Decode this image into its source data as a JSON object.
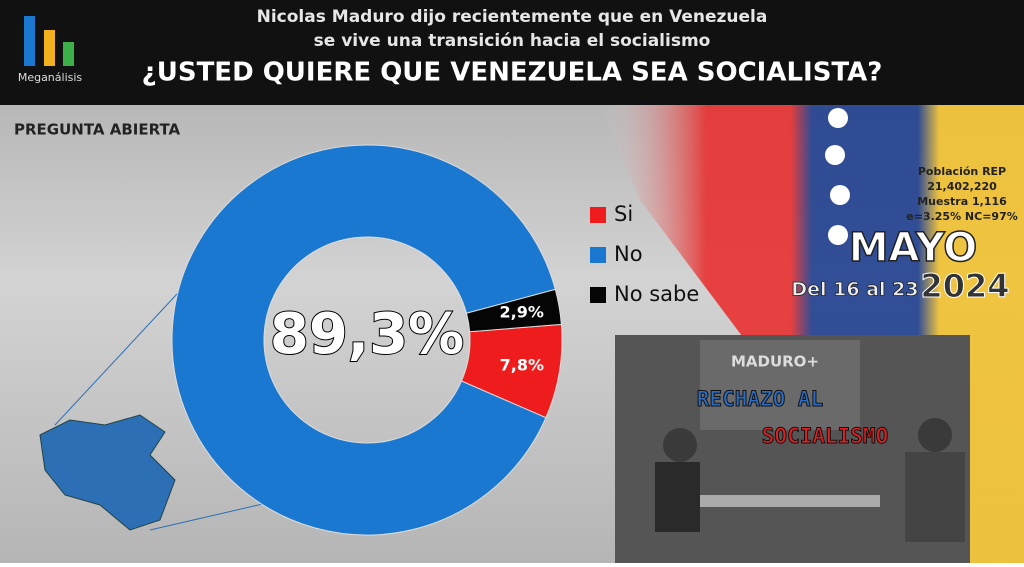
{
  "header": {
    "logo": "Meganálisis",
    "line1": "Nicolas Maduro dijo recientemente que en Venezuela",
    "line2": "se vive una transición hacia el socialismo",
    "question": "¿USTED QUIERE QUE VENEZUELA SEA SOCIALISTA?"
  },
  "subtitle": "PREGUNTA ABIERTA",
  "info": {
    "population_label": "Población REP",
    "population": "21,402,220",
    "sample": "Muestra 1,116",
    "error": "e=3.25%  NC=97%"
  },
  "date": {
    "month": "MAYO",
    "range": "Del 16 al 23",
    "year": "2024"
  },
  "photo": {
    "screen": "MADURO+",
    "caption1": "RECHAZO AL",
    "caption2": "SOCIALISMO"
  },
  "chart_data": {
    "type": "pie",
    "donut": true,
    "categories": [
      "Si",
      "No",
      "No sabe"
    ],
    "values": [
      7.8,
      89.3,
      2.9
    ],
    "value_labels": [
      "7,8%",
      "89,3%",
      "2,9%"
    ],
    "colors": [
      "#ee1c1c",
      "#1b78d0",
      "#050505"
    ]
  }
}
